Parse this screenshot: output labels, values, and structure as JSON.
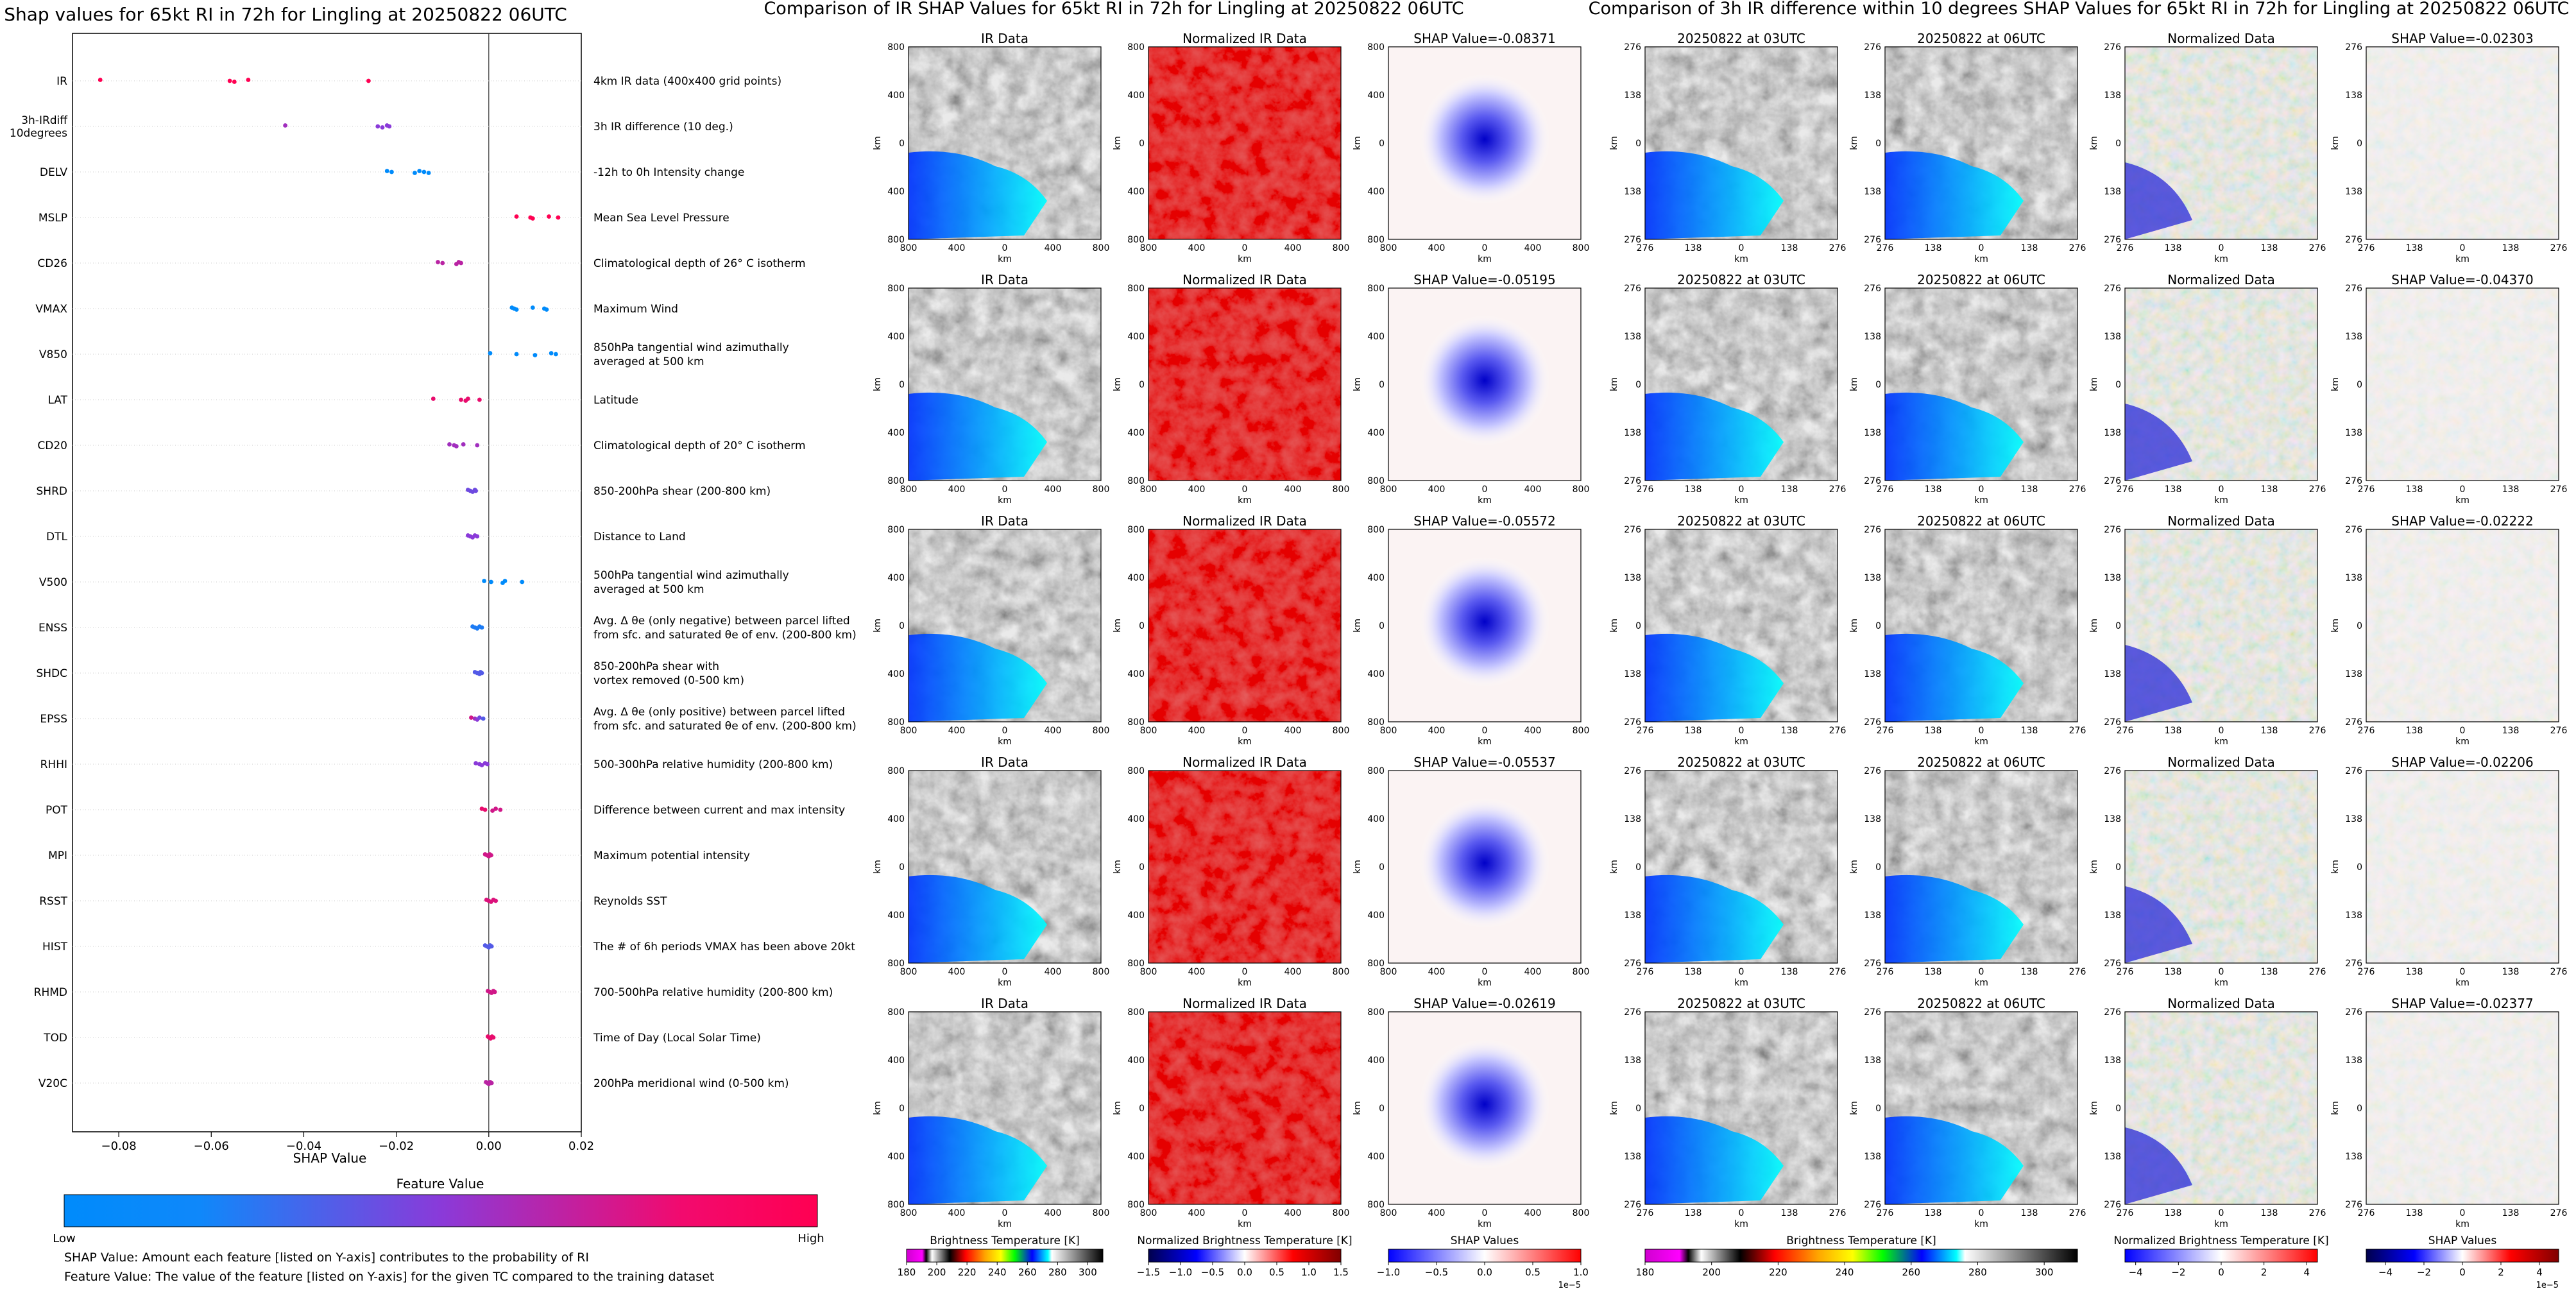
{
  "chart_data": [
    {
      "type": "scatter",
      "title": "Shap values for 65kt RI in 72h for Lingling at 20250822 06UTC",
      "xlabel": "SHAP Value",
      "xlim": [
        -0.09,
        0.02
      ],
      "xticks": [
        -0.08,
        -0.06,
        -0.04,
        -0.02,
        0.0,
        0.02
      ],
      "xtick_labels": [
        "−0.08",
        "−0.06",
        "−0.04",
        "−0.02",
        "0.00",
        "0.02"
      ],
      "features": [
        {
          "name": "IR",
          "desc": [
            "4km IR data (400x400 grid points)"
          ],
          "points": [
            [
              -0.084,
              1.0
            ],
            [
              -0.056,
              1.0
            ],
            [
              -0.055,
              1.0
            ],
            [
              -0.052,
              1.0
            ],
            [
              -0.026,
              1.0
            ]
          ]
        },
        {
          "name": "3h-IRdiff\n10degrees",
          "desc": [
            "3h IR difference (10 deg.)"
          ],
          "points": [
            [
              -0.044,
              0.6
            ],
            [
              -0.024,
              0.5
            ],
            [
              -0.023,
              0.5
            ],
            [
              -0.022,
              0.5
            ],
            [
              -0.0215,
              0.5
            ]
          ]
        },
        {
          "name": "DELV",
          "desc": [
            "-12h to 0h Intensity change"
          ],
          "points": [
            [
              -0.022,
              0.0
            ],
            [
              -0.021,
              0.0
            ],
            [
              -0.016,
              0.0
            ],
            [
              -0.015,
              0.0
            ],
            [
              -0.014,
              0.0
            ],
            [
              -0.013,
              0.0
            ]
          ]
        },
        {
          "name": "MSLP",
          "desc": [
            "Mean Sea Level Pressure"
          ],
          "points": [
            [
              0.006,
              1.0
            ],
            [
              0.009,
              1.0
            ],
            [
              0.0095,
              1.0
            ],
            [
              0.013,
              1.0
            ],
            [
              0.015,
              1.0
            ]
          ]
        },
        {
          "name": "CD26",
          "desc": [
            "Climatological depth of 26° C isotherm"
          ],
          "points": [
            [
              -0.011,
              0.7
            ],
            [
              -0.01,
              0.7
            ],
            [
              -0.007,
              0.7
            ],
            [
              -0.0065,
              0.7
            ],
            [
              -0.006,
              0.7
            ]
          ]
        },
        {
          "name": "VMAX",
          "desc": [
            "Maximum Wind"
          ],
          "points": [
            [
              0.005,
              0.0
            ],
            [
              0.0055,
              0.0
            ],
            [
              0.006,
              0.0
            ],
            [
              0.0095,
              0.0
            ],
            [
              0.012,
              0.0
            ],
            [
              0.0125,
              0.0
            ]
          ]
        },
        {
          "name": "V850",
          "desc": [
            "850hPa tangential wind azimuthally",
            "averaged at 500 km"
          ],
          "points": [
            [
              0.0003,
              0.0
            ],
            [
              0.006,
              0.0
            ],
            [
              0.01,
              0.0
            ],
            [
              0.0135,
              0.0
            ],
            [
              0.0145,
              0.0
            ]
          ]
        },
        {
          "name": "LAT",
          "desc": [
            "Latitude"
          ],
          "points": [
            [
              -0.012,
              0.9
            ],
            [
              -0.006,
              0.9
            ],
            [
              -0.005,
              0.9
            ],
            [
              -0.0045,
              0.9
            ],
            [
              -0.002,
              0.9
            ]
          ]
        },
        {
          "name": "CD20",
          "desc": [
            "Climatological depth of 20° C isotherm"
          ],
          "points": [
            [
              -0.0085,
              0.6
            ],
            [
              -0.0075,
              0.6
            ],
            [
              -0.007,
              0.6
            ],
            [
              -0.0055,
              0.6
            ],
            [
              -0.0025,
              0.6
            ]
          ]
        },
        {
          "name": "SHRD",
          "desc": [
            "850-200hPa shear (200-800 km)"
          ],
          "points": [
            [
              -0.0045,
              0.4
            ],
            [
              -0.004,
              0.4
            ],
            [
              -0.0035,
              0.4
            ],
            [
              -0.003,
              0.4
            ],
            [
              -0.0028,
              0.4
            ]
          ]
        },
        {
          "name": "DTL",
          "desc": [
            "Distance to Land"
          ],
          "points": [
            [
              -0.0045,
              0.5
            ],
            [
              -0.004,
              0.5
            ],
            [
              -0.0035,
              0.5
            ],
            [
              -0.003,
              0.5
            ],
            [
              -0.0025,
              0.5
            ]
          ]
        },
        {
          "name": "V500",
          "desc": [
            "500hPa tangential wind azimuthally",
            "averaged at 500 km"
          ],
          "points": [
            [
              -0.001,
              0.0
            ],
            [
              0.0005,
              0.0
            ],
            [
              0.003,
              0.0
            ],
            [
              0.0035,
              0.0
            ],
            [
              0.0072,
              0.0
            ]
          ]
        },
        {
          "name": "ENSS",
          "desc": [
            "Avg. Δ θe (only negative) between parcel lifted",
            "from sfc. and saturated θe of env. (200-800 km)"
          ],
          "points": [
            [
              -0.0035,
              0.1
            ],
            [
              -0.003,
              0.1
            ],
            [
              -0.0025,
              0.1
            ],
            [
              -0.002,
              0.1
            ],
            [
              -0.0015,
              0.1
            ]
          ]
        },
        {
          "name": "SHDC",
          "desc": [
            "850-200hPa shear with",
            "vortex removed (0-500 km)"
          ],
          "points": [
            [
              -0.003,
              0.3
            ],
            [
              -0.0025,
              0.3
            ],
            [
              -0.002,
              0.3
            ],
            [
              -0.0018,
              0.3
            ],
            [
              -0.0015,
              0.3
            ]
          ]
        },
        {
          "name": "EPSS",
          "desc": [
            "Avg. Δ θe (only positive) between parcel lifted",
            "from sfc. and saturated θe of env. (200-800 km)"
          ],
          "points": [
            [
              -0.0038,
              0.8
            ],
            [
              -0.003,
              0.6
            ],
            [
              -0.0025,
              0.5
            ],
            [
              -0.002,
              0.4
            ],
            [
              -0.0012,
              0.3
            ]
          ]
        },
        {
          "name": "RHHI",
          "desc": [
            "500-300hPa relative humidity (200-800 km)"
          ],
          "points": [
            [
              -0.0028,
              0.5
            ],
            [
              -0.002,
              0.5
            ],
            [
              -0.0015,
              0.5
            ],
            [
              -0.0008,
              0.5
            ],
            [
              -0.0003,
              0.5
            ]
          ]
        },
        {
          "name": "POT",
          "desc": [
            "Difference between current and max intensity"
          ],
          "points": [
            [
              -0.0015,
              0.9
            ],
            [
              -0.0008,
              0.9
            ],
            [
              0.0008,
              0.8
            ],
            [
              0.0015,
              0.8
            ],
            [
              0.0025,
              0.8
            ]
          ]
        },
        {
          "name": "MPI",
          "desc": [
            "Maximum potential intensity"
          ],
          "points": [
            [
              -0.0008,
              0.8
            ],
            [
              -0.0004,
              0.8
            ],
            [
              0.0,
              0.8
            ],
            [
              0.0002,
              0.8
            ],
            [
              0.0005,
              0.8
            ]
          ]
        },
        {
          "name": "RSST",
          "desc": [
            "Reynolds SST"
          ],
          "points": [
            [
              -0.0005,
              0.85
            ],
            [
              0.0,
              0.85
            ],
            [
              0.0005,
              0.85
            ],
            [
              0.001,
              0.85
            ],
            [
              0.0015,
              0.85
            ]
          ]
        },
        {
          "name": "HIST",
          "desc": [
            "The # of 6h periods VMAX has been above 20kt"
          ],
          "points": [
            [
              -0.0008,
              0.3
            ],
            [
              -0.0004,
              0.3
            ],
            [
              0.0,
              0.3
            ],
            [
              0.0003,
              0.3
            ],
            [
              0.0006,
              0.3
            ]
          ]
        },
        {
          "name": "RHMD",
          "desc": [
            "700-500hPa relative humidity (200-800 km)"
          ],
          "points": [
            [
              -0.0002,
              0.8
            ],
            [
              0.0002,
              0.8
            ],
            [
              0.0006,
              0.8
            ],
            [
              0.001,
              0.8
            ],
            [
              0.0013,
              0.8
            ]
          ]
        },
        {
          "name": "TOD",
          "desc": [
            "Time of Day (Local Solar Time)"
          ],
          "points": [
            [
              -0.0002,
              0.9
            ],
            [
              0.0001,
              0.9
            ],
            [
              0.0004,
              0.9
            ],
            [
              0.0007,
              0.9
            ],
            [
              0.001,
              0.9
            ]
          ]
        },
        {
          "name": "V20C",
          "desc": [
            "200hPa meridional wind (0-500 km)"
          ],
          "points": [
            [
              -0.0006,
              0.7
            ],
            [
              -0.0003,
              0.7
            ],
            [
              0.0,
              0.7
            ],
            [
              0.0003,
              0.7
            ],
            [
              0.0006,
              0.7
            ]
          ]
        }
      ],
      "colorbar": {
        "label": "Feature Value",
        "low": "Low",
        "high": "High",
        "colors": [
          "#008bfb",
          "#7a3fe0",
          "#ff0052"
        ]
      },
      "footnotes": [
        "SHAP Value: Amount each feature [listed on Y-axis] contributes to the probability of RI",
        "Feature Value: The value of the feature [listed on Y-axis] for the given TC compared to the training dataset"
      ]
    },
    {
      "type": "heatmap",
      "title": "Comparison of IR SHAP Values for 65kt RI in 72h for Lingling at 20250822 06UTC",
      "column_titles": [
        "IR Data",
        "Normalized IR Data"
      ],
      "shap_titles": [
        "SHAP Value=-0.08371",
        "SHAP Value=-0.05195",
        "SHAP Value=-0.05572",
        "SHAP Value=-0.05537",
        "SHAP Value=-0.02619"
      ],
      "xlabel": "km",
      "ylabel": "km",
      "ticks": [
        800,
        400,
        0,
        400,
        800
      ],
      "colorbars": [
        {
          "label": "Brightness Temperature [K]",
          "ticks": [
            "180",
            "200",
            "220",
            "240",
            "260",
            "280",
            "300"
          ],
          "range": [
            180,
            310
          ]
        },
        {
          "label": "Normalized Brightness Temperature [K]",
          "ticks": [
            "−1.5",
            "−1.0",
            "−0.5",
            "0.0",
            "0.5",
            "1.0",
            "1.5"
          ],
          "range": [
            -1.5,
            1.5
          ]
        },
        {
          "label": "SHAP Values",
          "ticks": [
            "−1.0",
            "−0.5",
            "0.0",
            "0.5",
            "1.0"
          ],
          "range": [
            -1.0,
            1.0
          ],
          "exponent": "1e−5"
        }
      ]
    },
    {
      "type": "heatmap",
      "title": "Comparison of 3h IR difference within 10 degrees SHAP Values for 65kt RI in 72h for Lingling at 20250822 06UTC",
      "column_titles": [
        "20250822 at 03UTC",
        "20250822 at 06UTC",
        "Normalized Data"
      ],
      "shap_titles": [
        "SHAP Value=-0.02303",
        "SHAP Value=-0.04370",
        "SHAP Value=-0.02222",
        "SHAP Value=-0.02206",
        "SHAP Value=-0.02377"
      ],
      "xlabel": "km",
      "ylabel": "km",
      "ticks": [
        276,
        138,
        0,
        138,
        276
      ],
      "colorbars": [
        {
          "label": "Brightness Temperature [K]",
          "ticks": [
            "180",
            "200",
            "220",
            "240",
            "260",
            "280",
            "300"
          ],
          "range": [
            180,
            310
          ]
        },
        {
          "label": "Normalized Brightness Temperature [K]",
          "ticks": [
            "−4",
            "−2",
            "0",
            "2",
            "4"
          ],
          "range": [
            -4.5,
            4.5
          ]
        },
        {
          "label": "SHAP Values",
          "ticks": [
            "−4",
            "−2",
            "0",
            "2",
            "4"
          ],
          "range": [
            -5,
            5
          ],
          "exponent": "1e−5"
        }
      ]
    }
  ]
}
